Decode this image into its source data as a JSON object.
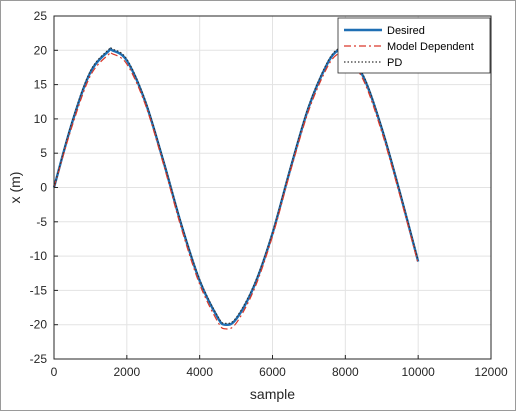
{
  "chart_data": {
    "type": "line",
    "xlabel": "sample",
    "ylabel": "x (m)",
    "xlim": [
      0,
      12000
    ],
    "ylim": [
      -25,
      25
    ],
    "xticks": [
      0,
      2000,
      4000,
      6000,
      8000,
      10000,
      12000
    ],
    "yticks": [
      25,
      20,
      15,
      10,
      5,
      0,
      -5,
      -10,
      -15,
      -20,
      -25
    ],
    "grid": true,
    "legend_position": "top-right",
    "x": [
      0,
      500,
      1000,
      1500,
      1600,
      2000,
      2500,
      3000,
      3500,
      4000,
      4500,
      4700,
      5000,
      5500,
      6000,
      6500,
      7000,
      7500,
      7800,
      8000,
      8500,
      9000,
      9500,
      10000
    ],
    "series": [
      {
        "name": "Desired",
        "color": "#1f6fb4",
        "style": "solid",
        "values": [
          0,
          9.5,
          16.8,
          19.9,
          20.0,
          18.5,
          12.6,
          3.9,
          -5.5,
          -13.6,
          -19.0,
          -20.0,
          -19.2,
          -14.3,
          -6.7,
          2.9,
          11.8,
          18.0,
          20.0,
          19.8,
          16.1,
          8.6,
          -0.8,
          -10.8
        ]
      },
      {
        "name": "Model Dependent",
        "color": "#d9382a",
        "style": "dashdot",
        "values": [
          0,
          9.0,
          16.3,
          19.4,
          19.5,
          18.0,
          12.2,
          3.5,
          -6.0,
          -14.1,
          -19.6,
          -20.6,
          -19.8,
          -14.8,
          -7.1,
          2.5,
          11.3,
          17.5,
          19.5,
          19.3,
          15.6,
          8.1,
          -1.2,
          -11.1
        ]
      },
      {
        "name": "PD",
        "color": "#333333",
        "style": "dotted",
        "values": [
          0,
          9.7,
          17.0,
          20.1,
          20.2,
          18.7,
          12.8,
          4.1,
          -5.3,
          -13.4,
          -18.8,
          -19.8,
          -19.0,
          -14.1,
          -6.5,
          3.1,
          12.0,
          18.2,
          20.2,
          20.0,
          16.3,
          8.8,
          -0.6,
          -10.6
        ]
      }
    ]
  }
}
